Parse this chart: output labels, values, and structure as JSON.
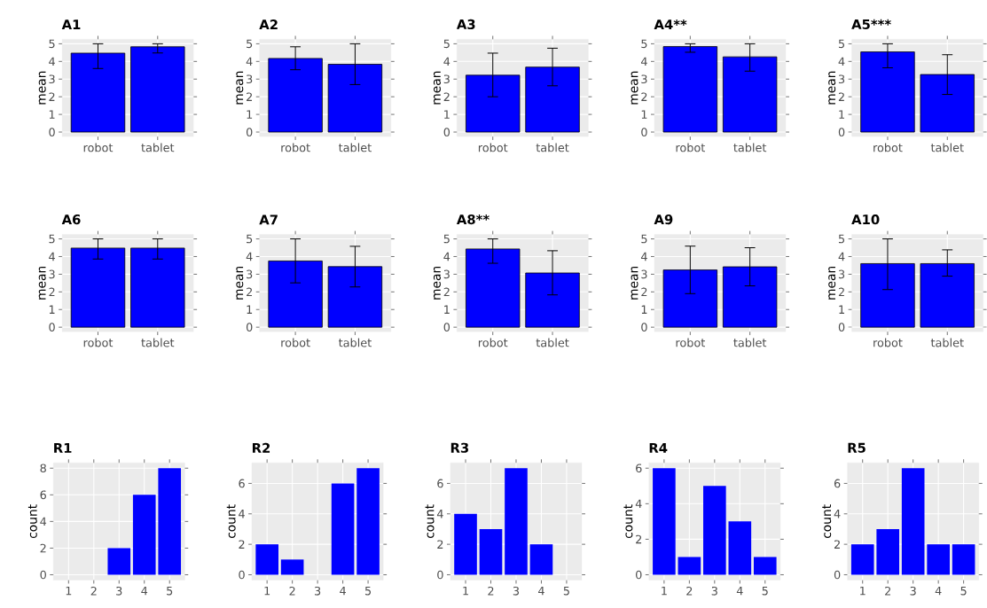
{
  "chart_data": [
    {
      "type": "bar",
      "title": "A1",
      "ylabel": "mean",
      "categories": [
        "robot",
        "tablet"
      ],
      "values": [
        4.47,
        4.83
      ],
      "errors": [
        [
          3.6,
          5.0
        ],
        [
          4.48,
          5.0
        ]
      ],
      "color": "#0000ff",
      "ylim": [
        -0.25,
        5.25
      ],
      "yticks": [
        0,
        1,
        2,
        3,
        4,
        5
      ],
      "grid": true
    },
    {
      "type": "bar",
      "title": "A2",
      "ylabel": "mean",
      "categories": [
        "robot",
        "tablet"
      ],
      "values": [
        4.17,
        3.84
      ],
      "errors": [
        [
          3.53,
          4.83
        ],
        [
          2.69,
          5.0
        ]
      ],
      "color": "#0000ff",
      "ylim": [
        -0.25,
        5.25
      ],
      "yticks": [
        0,
        1,
        2,
        3,
        4,
        5
      ],
      "grid": true
    },
    {
      "type": "bar",
      "title": "A3",
      "ylabel": "mean",
      "categories": [
        "robot",
        "tablet"
      ],
      "values": [
        3.22,
        3.68
      ],
      "errors": [
        [
          2.0,
          4.47
        ],
        [
          2.62,
          4.75
        ]
      ],
      "color": "#0000ff",
      "ylim": [
        -0.25,
        5.25
      ],
      "yticks": [
        0,
        1,
        2,
        3,
        4,
        5
      ],
      "grid": true
    },
    {
      "type": "bar",
      "title": "A4**",
      "ylabel": "mean",
      "categories": [
        "robot",
        "tablet"
      ],
      "values": [
        4.84,
        4.26
      ],
      "errors": [
        [
          4.52,
          5.0
        ],
        [
          3.45,
          5.0
        ]
      ],
      "color": "#0000ff",
      "ylim": [
        -0.25,
        5.25
      ],
      "yticks": [
        0,
        1,
        2,
        3,
        4,
        5
      ],
      "grid": true
    },
    {
      "type": "bar",
      "title": "A5***",
      "ylabel": "mean",
      "categories": [
        "robot",
        "tablet"
      ],
      "values": [
        4.54,
        3.26
      ],
      "errors": [
        [
          3.64,
          5.0
        ],
        [
          2.13,
          4.38
        ]
      ],
      "color": "#0000ff",
      "ylim": [
        -0.25,
        5.25
      ],
      "yticks": [
        0,
        1,
        2,
        3,
        4,
        5
      ],
      "grid": true
    },
    {
      "type": "bar",
      "title": "A6",
      "ylabel": "mean",
      "categories": [
        "robot",
        "tablet"
      ],
      "values": [
        4.48,
        4.48
      ],
      "errors": [
        [
          3.86,
          5.0
        ],
        [
          3.86,
          5.0
        ]
      ],
      "color": "#0000ff",
      "ylim": [
        -0.25,
        5.25
      ],
      "yticks": [
        0,
        1,
        2,
        3,
        4,
        5
      ],
      "grid": true
    },
    {
      "type": "bar",
      "title": "A7",
      "ylabel": "mean",
      "categories": [
        "robot",
        "tablet"
      ],
      "values": [
        3.75,
        3.43
      ],
      "errors": [
        [
          2.51,
          5.0
        ],
        [
          2.28,
          4.58
        ]
      ],
      "color": "#0000ff",
      "ylim": [
        -0.25,
        5.25
      ],
      "yticks": [
        0,
        1,
        2,
        3,
        4,
        5
      ],
      "grid": true
    },
    {
      "type": "bar",
      "title": "A8**",
      "ylabel": "mean",
      "categories": [
        "robot",
        "tablet"
      ],
      "values": [
        4.43,
        3.07
      ],
      "errors": [
        [
          3.62,
          5.0
        ],
        [
          1.83,
          4.33
        ]
      ],
      "color": "#0000ff",
      "ylim": [
        -0.25,
        5.25
      ],
      "yticks": [
        0,
        1,
        2,
        3,
        4,
        5
      ],
      "grid": true
    },
    {
      "type": "bar",
      "title": "A9",
      "ylabel": "mean",
      "categories": [
        "robot",
        "tablet"
      ],
      "values": [
        3.24,
        3.42
      ],
      "errors": [
        [
          1.9,
          4.59
        ],
        [
          2.34,
          4.5
        ]
      ],
      "color": "#0000ff",
      "ylim": [
        -0.25,
        5.25
      ],
      "yticks": [
        0,
        1,
        2,
        3,
        4,
        5
      ],
      "grid": true
    },
    {
      "type": "bar",
      "title": "A10",
      "ylabel": "mean",
      "categories": [
        "robot",
        "tablet"
      ],
      "values": [
        3.6,
        3.6
      ],
      "errors": [
        [
          2.13,
          5.0
        ],
        [
          2.89,
          4.38
        ]
      ],
      "color": "#0000ff",
      "ylim": [
        -0.25,
        5.25
      ],
      "yticks": [
        0,
        1,
        2,
        3,
        4,
        5
      ],
      "grid": true
    },
    {
      "type": "bar",
      "title": "R1",
      "ylabel": "count",
      "categories": [
        "1",
        "2",
        "3",
        "4",
        "5"
      ],
      "values": [
        0,
        0,
        2,
        6,
        8
      ],
      "color": "#0000ff",
      "ylim": [
        -0.4,
        8.4
      ],
      "yticks": [
        0,
        2,
        4,
        6,
        8
      ],
      "grid": true
    },
    {
      "type": "bar",
      "title": "R2",
      "ylabel": "count",
      "categories": [
        "1",
        "2",
        "3",
        "4",
        "5"
      ],
      "values": [
        2,
        1,
        0,
        6,
        7
      ],
      "color": "#0000ff",
      "ylim": [
        -0.35,
        7.35
      ],
      "yticks": [
        0,
        2,
        4,
        6
      ],
      "grid": true
    },
    {
      "type": "bar",
      "title": "R3",
      "ylabel": "count",
      "categories": [
        "1",
        "2",
        "3",
        "4",
        "5"
      ],
      "values": [
        4,
        3,
        7,
        2,
        0
      ],
      "color": "#0000ff",
      "ylim": [
        -0.35,
        7.35
      ],
      "yticks": [
        0,
        2,
        4,
        6
      ],
      "grid": true
    },
    {
      "type": "bar",
      "title": "R4",
      "ylabel": "count",
      "categories": [
        "1",
        "2",
        "3",
        "4",
        "5"
      ],
      "values": [
        6,
        1,
        5,
        3,
        1
      ],
      "color": "#0000ff",
      "ylim": [
        -0.3,
        6.3
      ],
      "yticks": [
        0,
        2,
        4,
        6
      ],
      "grid": true
    },
    {
      "type": "bar",
      "title": "R5",
      "ylabel": "count",
      "categories": [
        "1",
        "2",
        "3",
        "4",
        "5"
      ],
      "values": [
        2,
        3,
        7,
        2,
        2
      ],
      "color": "#0000ff",
      "ylim": [
        -0.35,
        7.35
      ],
      "yticks": [
        0,
        2,
        4,
        6
      ],
      "grid": true
    }
  ]
}
